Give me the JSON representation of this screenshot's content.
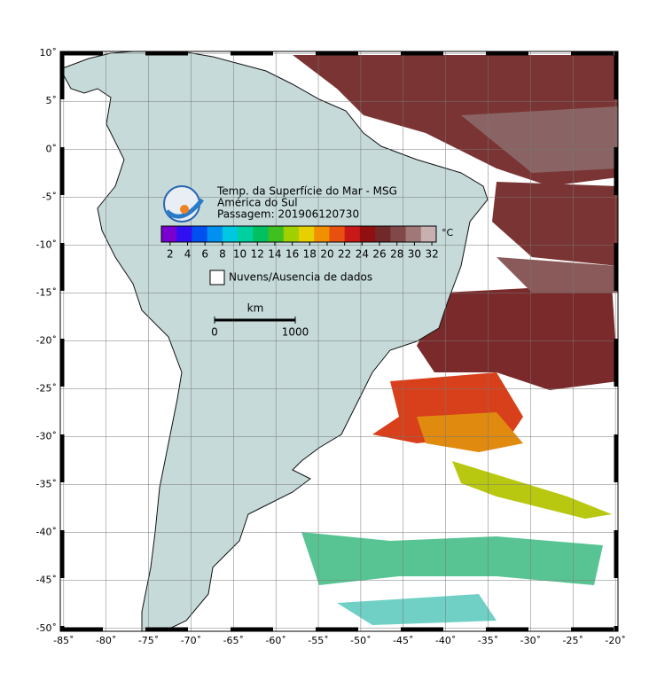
{
  "map": {
    "title": "Temp. da Superfície do Mar - MSG",
    "subtitle": "América do Sul",
    "pass": "Passagem: 201906120730",
    "colorbar": {
      "range": [
        1,
        32.5
      ],
      "ticks": [
        2,
        4,
        6,
        8,
        10,
        12,
        14,
        16,
        18,
        20,
        22,
        24,
        26,
        28,
        30,
        32
      ],
      "unit": "°C",
      "colors": [
        "#7a00d0",
        "#3010f0",
        "#0050f0",
        "#0090f0",
        "#00c8e0",
        "#00d0a0",
        "#00c060",
        "#40c020",
        "#a0d000",
        "#e8d000",
        "#f09000",
        "#e85010",
        "#c81818",
        "#901010",
        "#702828",
        "#804848",
        "#a07878",
        "#c8b0b0"
      ]
    },
    "legend": "Nuvens/Ausencia de dados",
    "scale": {
      "unit": "km",
      "ticks": [
        0,
        1000
      ]
    },
    "xlim": [
      -85.4,
      -19.7
    ],
    "ylim": [
      -50.3,
      10.2
    ],
    "lat_ticks": [
      {
        "value": 10,
        "label": "10˚"
      },
      {
        "value": 5,
        "label": "5˚"
      },
      {
        "value": 0,
        "label": "0˚"
      },
      {
        "value": -5,
        "label": "-5˚"
      },
      {
        "value": -10,
        "label": "-10˚"
      },
      {
        "value": -15,
        "label": "-15˚"
      },
      {
        "value": -20,
        "label": "-20˚"
      },
      {
        "value": -25,
        "label": "-25˚"
      },
      {
        "value": -30,
        "label": "-30˚"
      },
      {
        "value": -35,
        "label": "-35˚"
      },
      {
        "value": -40,
        "label": "-40˚"
      },
      {
        "value": -45,
        "label": "-45˚"
      },
      {
        "value": -50,
        "label": "-50˚"
      }
    ],
    "lon_ticks": [
      {
        "value": -85,
        "label": "-85˚"
      },
      {
        "value": -80,
        "label": "-80˚"
      },
      {
        "value": -75,
        "label": "-75˚"
      },
      {
        "value": -70,
        "label": "-70˚"
      },
      {
        "value": -65,
        "label": "-65˚"
      },
      {
        "value": -60,
        "label": "-60˚"
      },
      {
        "value": -55,
        "label": "-55˚"
      },
      {
        "value": -50,
        "label": "-50˚"
      },
      {
        "value": -45,
        "label": "-45˚"
      },
      {
        "value": -40,
        "label": "-40˚"
      },
      {
        "value": -35,
        "label": "-35˚"
      },
      {
        "value": -30,
        "label": "-30˚"
      },
      {
        "value": -25,
        "label": "-25˚"
      },
      {
        "value": -20,
        "label": "-20˚"
      }
    ]
  }
}
